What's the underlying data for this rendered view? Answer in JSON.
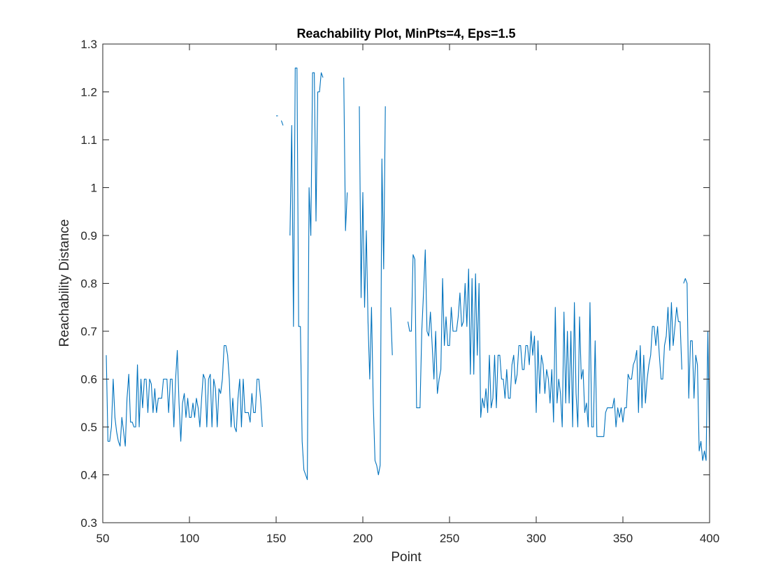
{
  "chart_data": {
    "type": "line",
    "title": "Reachability Plot, MinPts=4, Eps=1.5",
    "xlabel": "Point",
    "ylabel": "Reachability Distance",
    "xlim": [
      50,
      400
    ],
    "ylim": [
      0.3,
      1.3
    ],
    "xticks": [
      50,
      100,
      150,
      200,
      250,
      300,
      350,
      400
    ],
    "yticks": [
      0.3,
      0.4,
      0.5,
      0.6,
      0.7,
      0.8,
      0.9,
      1.0,
      1.1,
      1.2,
      1.3
    ],
    "ytick_labels": [
      "0.3",
      "0.4",
      "0.5",
      "0.6",
      "0.7",
      "0.8",
      "0.9",
      "1",
      "1.1",
      "1.2",
      "1.3"
    ],
    "grid": false,
    "box": true,
    "line_color": "#0072BD",
    "segments": [
      [
        [
          52,
          0.65
        ],
        [
          53,
          0.47
        ],
        [
          54,
          0.47
        ],
        [
          55,
          0.5
        ],
        [
          56,
          0.6
        ],
        [
          57,
          0.52
        ],
        [
          58,
          0.49
        ],
        [
          59,
          0.47
        ],
        [
          60,
          0.46
        ],
        [
          61,
          0.52
        ],
        [
          62,
          0.49
        ],
        [
          63,
          0.46
        ],
        [
          64,
          0.56
        ],
        [
          65,
          0.61
        ],
        [
          66,
          0.51
        ],
        [
          67,
          0.51
        ],
        [
          68,
          0.5
        ],
        [
          69,
          0.5
        ],
        [
          70,
          0.63
        ],
        [
          71,
          0.5
        ],
        [
          72,
          0.6
        ],
        [
          73,
          0.54
        ],
        [
          74,
          0.6
        ],
        [
          75,
          0.6
        ],
        [
          76,
          0.53
        ],
        [
          77,
          0.6
        ],
        [
          78,
          0.59
        ],
        [
          79,
          0.53
        ],
        [
          80,
          0.58
        ],
        [
          81,
          0.53
        ],
        [
          82,
          0.56
        ],
        [
          83,
          0.56
        ],
        [
          84,
          0.56
        ],
        [
          85,
          0.6
        ],
        [
          86,
          0.6
        ],
        [
          87,
          0.6
        ],
        [
          88,
          0.53
        ],
        [
          89,
          0.6
        ],
        [
          90,
          0.6
        ],
        [
          91,
          0.5
        ],
        [
          92,
          0.6
        ],
        [
          93,
          0.66
        ],
        [
          94,
          0.55
        ],
        [
          95,
          0.47
        ],
        [
          96,
          0.55
        ],
        [
          97,
          0.57
        ],
        [
          98,
          0.52
        ],
        [
          99,
          0.56
        ],
        [
          100,
          0.52
        ],
        [
          101,
          0.52
        ],
        [
          102,
          0.55
        ],
        [
          103,
          0.52
        ],
        [
          104,
          0.56
        ],
        [
          105,
          0.54
        ],
        [
          106,
          0.5
        ],
        [
          107,
          0.56
        ],
        [
          108,
          0.61
        ],
        [
          109,
          0.6
        ],
        [
          110,
          0.5
        ],
        [
          111,
          0.6
        ],
        [
          112,
          0.61
        ],
        [
          113,
          0.5
        ],
        [
          114,
          0.6
        ],
        [
          115,
          0.58
        ],
        [
          116,
          0.5
        ],
        [
          117,
          0.58
        ],
        [
          118,
          0.57
        ],
        [
          119,
          0.6
        ],
        [
          120,
          0.67
        ],
        [
          121,
          0.67
        ],
        [
          122,
          0.65
        ],
        [
          123,
          0.6
        ],
        [
          124,
          0.5
        ],
        [
          125,
          0.56
        ],
        [
          126,
          0.5
        ],
        [
          127,
          0.49
        ],
        [
          128,
          0.56
        ],
        [
          129,
          0.6
        ],
        [
          130,
          0.5
        ],
        [
          131,
          0.6
        ],
        [
          132,
          0.53
        ],
        [
          133,
          0.53
        ],
        [
          134,
          0.53
        ],
        [
          135,
          0.51
        ],
        [
          136,
          0.57
        ],
        [
          137,
          0.53
        ],
        [
          138,
          0.53
        ],
        [
          139,
          0.6
        ],
        [
          140,
          0.6
        ],
        [
          141,
          0.56
        ],
        [
          142,
          0.5
        ]
      ],
      [
        [
          150,
          1.15
        ],
        [
          151,
          1.15
        ]
      ],
      [
        [
          153,
          1.14
        ],
        [
          154,
          1.13
        ]
      ],
      [
        [
          158,
          0.9
        ],
        [
          159,
          1.13
        ],
        [
          160,
          0.71
        ],
        [
          161,
          1.25
        ],
        [
          162,
          1.25
        ],
        [
          163,
          0.71
        ],
        [
          164,
          0.71
        ],
        [
          165,
          0.47
        ],
        [
          166,
          0.41
        ],
        [
          167,
          0.4
        ],
        [
          168,
          0.39
        ],
        [
          169,
          1.0
        ],
        [
          170,
          0.9
        ],
        [
          171,
          1.24
        ],
        [
          172,
          1.24
        ],
        [
          173,
          0.93
        ],
        [
          174,
          1.2
        ],
        [
          175,
          1.2
        ],
        [
          176,
          1.24
        ],
        [
          177,
          1.23
        ]
      ],
      [
        [
          189,
          1.23
        ],
        [
          190,
          0.91
        ],
        [
          191,
          0.99
        ]
      ],
      [
        [
          198,
          1.17
        ],
        [
          199,
          0.77
        ],
        [
          200,
          0.99
        ],
        [
          201,
          0.75
        ],
        [
          202,
          0.91
        ],
        [
          203,
          0.72
        ],
        [
          204,
          0.6
        ],
        [
          205,
          0.75
        ],
        [
          206,
          0.55
        ],
        [
          207,
          0.43
        ],
        [
          208,
          0.42
        ],
        [
          209,
          0.4
        ],
        [
          210,
          0.42
        ],
        [
          211,
          1.06
        ],
        [
          212,
          0.83
        ],
        [
          213,
          1.17
        ]
      ],
      [
        [
          216,
          0.75
        ],
        [
          217,
          0.65
        ]
      ],
      [
        [
          226,
          0.72
        ],
        [
          227,
          0.7
        ],
        [
          228,
          0.7
        ],
        [
          229,
          0.86
        ],
        [
          230,
          0.85
        ],
        [
          231,
          0.54
        ],
        [
          232,
          0.54
        ],
        [
          233,
          0.54
        ],
        [
          234,
          0.7
        ],
        [
          235,
          0.78
        ],
        [
          236,
          0.87
        ],
        [
          237,
          0.7
        ],
        [
          238,
          0.69
        ],
        [
          239,
          0.74
        ],
        [
          240,
          0.67
        ],
        [
          241,
          0.6
        ],
        [
          242,
          0.7
        ],
        [
          243,
          0.57
        ],
        [
          244,
          0.6
        ],
        [
          245,
          0.62
        ],
        [
          246,
          0.81
        ],
        [
          247,
          0.67
        ],
        [
          248,
          0.73
        ],
        [
          249,
          0.67
        ],
        [
          250,
          0.67
        ],
        [
          251,
          0.75
        ],
        [
          252,
          0.7
        ],
        [
          253,
          0.7
        ],
        [
          254,
          0.7
        ],
        [
          255,
          0.73
        ],
        [
          256,
          0.78
        ],
        [
          257,
          0.71
        ],
        [
          258,
          0.72
        ],
        [
          259,
          0.8
        ],
        [
          260,
          0.71
        ],
        [
          261,
          0.83
        ],
        [
          262,
          0.61
        ],
        [
          263,
          0.81
        ],
        [
          264,
          0.61
        ],
        [
          265,
          0.82
        ],
        [
          266,
          0.65
        ],
        [
          267,
          0.8
        ],
        [
          268,
          0.52
        ],
        [
          269,
          0.56
        ],
        [
          270,
          0.54
        ],
        [
          271,
          0.58
        ],
        [
          272,
          0.53
        ],
        [
          273,
          0.65
        ],
        [
          274,
          0.54
        ],
        [
          275,
          0.56
        ],
        [
          276,
          0.65
        ],
        [
          277,
          0.54
        ],
        [
          278,
          0.65
        ],
        [
          279,
          0.65
        ],
        [
          280,
          0.6
        ],
        [
          281,
          0.6
        ],
        [
          282,
          0.56
        ],
        [
          283,
          0.62
        ],
        [
          284,
          0.56
        ],
        [
          285,
          0.56
        ],
        [
          286,
          0.63
        ],
        [
          287,
          0.65
        ],
        [
          288,
          0.59
        ],
        [
          289,
          0.61
        ],
        [
          290,
          0.67
        ],
        [
          291,
          0.67
        ],
        [
          292,
          0.62
        ],
        [
          293,
          0.62
        ],
        [
          294,
          0.67
        ],
        [
          295,
          0.67
        ],
        [
          296,
          0.63
        ],
        [
          297,
          0.7
        ],
        [
          298,
          0.65
        ],
        [
          299,
          0.69
        ],
        [
          300,
          0.53
        ],
        [
          301,
          0.68
        ],
        [
          302,
          0.57
        ],
        [
          303,
          0.65
        ],
        [
          304,
          0.63
        ],
        [
          305,
          0.57
        ],
        [
          306,
          0.62
        ],
        [
          307,
          0.6
        ],
        [
          308,
          0.55
        ],
        [
          309,
          0.62
        ],
        [
          310,
          0.51
        ],
        [
          311,
          0.75
        ],
        [
          312,
          0.55
        ],
        [
          313,
          0.6
        ],
        [
          314,
          0.57
        ],
        [
          315,
          0.5
        ],
        [
          316,
          0.74
        ],
        [
          317,
          0.55
        ],
        [
          318,
          0.7
        ],
        [
          319,
          0.55
        ],
        [
          320,
          0.7
        ],
        [
          321,
          0.5
        ],
        [
          322,
          0.76
        ],
        [
          323,
          0.57
        ],
        [
          324,
          0.5
        ],
        [
          325,
          0.73
        ],
        [
          326,
          0.6
        ],
        [
          327,
          0.62
        ],
        [
          328,
          0.53
        ],
        [
          329,
          0.55
        ],
        [
          330,
          0.5
        ],
        [
          331,
          0.76
        ],
        [
          332,
          0.5
        ],
        [
          333,
          0.5
        ],
        [
          334,
          0.68
        ],
        [
          335,
          0.48
        ],
        [
          336,
          0.48
        ],
        [
          337,
          0.48
        ],
        [
          338,
          0.48
        ],
        [
          339,
          0.48
        ],
        [
          340,
          0.53
        ],
        [
          341,
          0.54
        ],
        [
          342,
          0.54
        ],
        [
          343,
          0.54
        ],
        [
          344,
          0.54
        ],
        [
          345,
          0.56
        ],
        [
          346,
          0.5
        ],
        [
          347,
          0.54
        ],
        [
          348,
          0.52
        ],
        [
          349,
          0.54
        ],
        [
          350,
          0.51
        ],
        [
          351,
          0.54
        ],
        [
          352,
          0.54
        ],
        [
          353,
          0.61
        ],
        [
          354,
          0.6
        ],
        [
          355,
          0.6
        ],
        [
          356,
          0.63
        ],
        [
          357,
          0.64
        ],
        [
          358,
          0.66
        ],
        [
          359,
          0.53
        ],
        [
          360,
          0.67
        ],
        [
          361,
          0.54
        ],
        [
          362,
          0.65
        ],
        [
          363,
          0.55
        ],
        [
          364,
          0.6
        ],
        [
          365,
          0.63
        ],
        [
          366,
          0.65
        ],
        [
          367,
          0.71
        ],
        [
          368,
          0.71
        ],
        [
          369,
          0.67
        ],
        [
          370,
          0.71
        ],
        [
          371,
          0.65
        ],
        [
          372,
          0.6
        ],
        [
          373,
          0.6
        ],
        [
          374,
          0.67
        ],
        [
          375,
          0.69
        ],
        [
          376,
          0.75
        ],
        [
          377,
          0.66
        ],
        [
          378,
          0.76
        ],
        [
          379,
          0.67
        ],
        [
          380,
          0.71
        ],
        [
          381,
          0.75
        ],
        [
          382,
          0.72
        ],
        [
          383,
          0.72
        ],
        [
          384,
          0.62
        ]
      ],
      [
        [
          385,
          0.8
        ],
        [
          386,
          0.81
        ],
        [
          387,
          0.8
        ],
        [
          388,
          0.56
        ],
        [
          389,
          0.68
        ],
        [
          390,
          0.68
        ],
        [
          391,
          0.56
        ],
        [
          392,
          0.65
        ],
        [
          393,
          0.63
        ],
        [
          394,
          0.45
        ],
        [
          395,
          0.47
        ],
        [
          396,
          0.43
        ],
        [
          397,
          0.45
        ],
        [
          398,
          0.43
        ],
        [
          399,
          0.7
        ],
        [
          400,
          0.46
        ]
      ],
      [
        [
          400,
          0.48
        ],
        [
          401,
          0.62
        ],
        [
          402,
          0.49
        ],
        [
          403,
          0.51
        ]
      ]
    ]
  }
}
